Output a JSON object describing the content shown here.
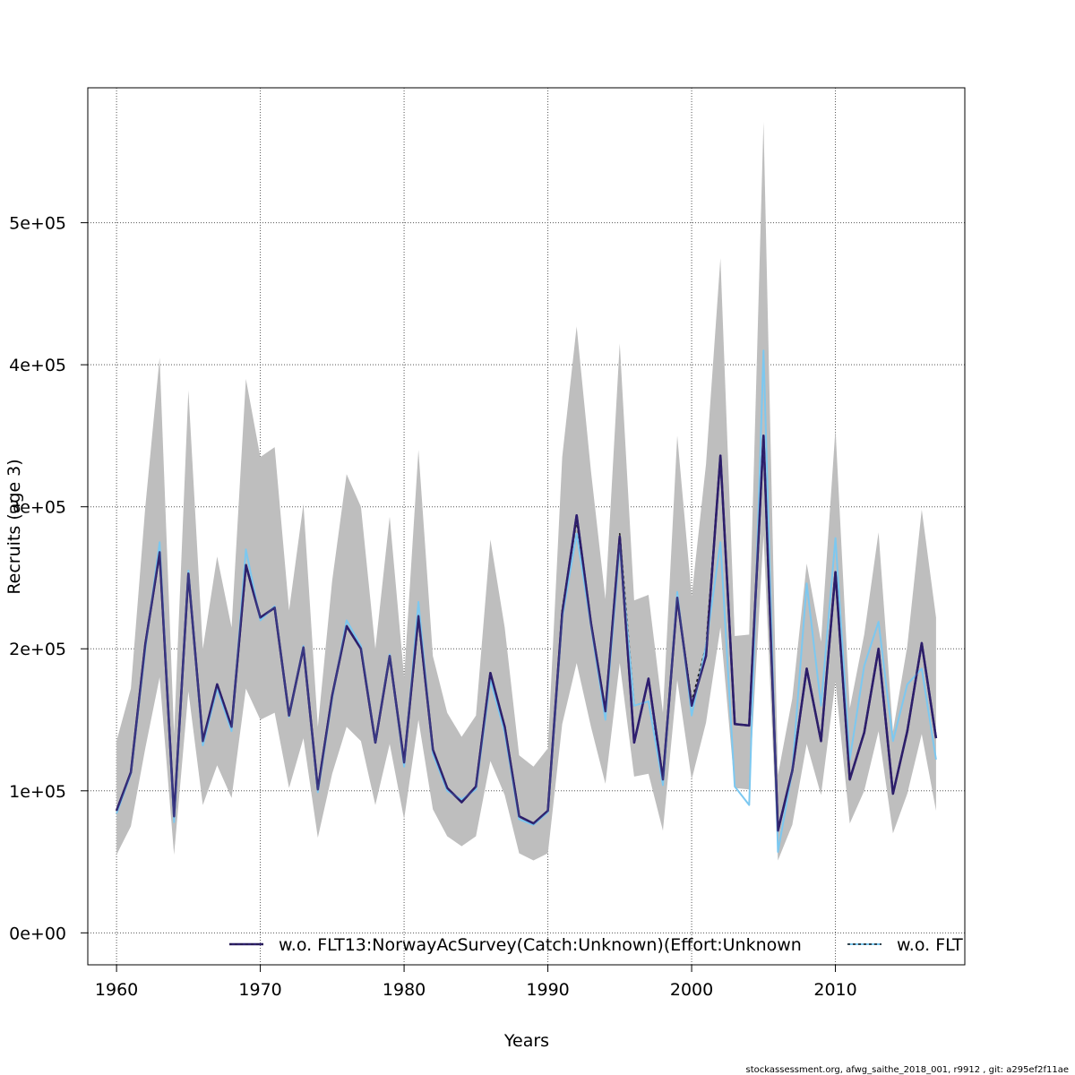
{
  "chart_data": {
    "type": "line",
    "xlabel": "Years",
    "ylabel": "Recruits (age 3)",
    "xlim": [
      1958,
      2019
    ],
    "ylim": [
      -22500,
      595000
    ],
    "x_ticks": [
      1960,
      1970,
      1980,
      1990,
      2000,
      2010
    ],
    "x_tick_labels": [
      "1960",
      "1970",
      "1980",
      "1990",
      "2000",
      "2010"
    ],
    "y_ticks": [
      0,
      100000,
      200000,
      300000,
      400000,
      500000
    ],
    "y_tick_labels": [
      "0e+00",
      "1e+05",
      "2e+05",
      "3e+05",
      "4e+05",
      "5e+05"
    ],
    "grid": true,
    "legend_position": "bottom",
    "years": [
      1960,
      1961,
      1962,
      1963,
      1964,
      1965,
      1966,
      1967,
      1968,
      1969,
      1970,
      1971,
      1972,
      1973,
      1974,
      1975,
      1976,
      1977,
      1978,
      1979,
      1980,
      1981,
      1982,
      1983,
      1984,
      1985,
      1986,
      1987,
      1988,
      1989,
      1990,
      1991,
      1992,
      1993,
      1994,
      1995,
      1996,
      1997,
      1998,
      1999,
      2000,
      2001,
      2002,
      2003,
      2004,
      2005,
      2006,
      2007,
      2008,
      2009,
      2010,
      2011,
      2012,
      2013,
      2014,
      2015,
      2016,
      2017
    ],
    "band": {
      "color": "#bebebe",
      "lower": [
        55000,
        75000,
        130000,
        180000,
        55000,
        170000,
        90000,
        118000,
        95000,
        172000,
        150000,
        155000,
        102000,
        137000,
        67000,
        112000,
        145000,
        135000,
        90000,
        133000,
        80000,
        150000,
        87000,
        68000,
        61000,
        68000,
        121000,
        97000,
        56000,
        51000,
        56000,
        147000,
        190000,
        145000,
        105000,
        190000,
        110000,
        112000,
        72000,
        178000,
        108000,
        148000,
        215000,
        102000,
        101000,
        280000,
        51000,
        76000,
        133000,
        97000,
        177000,
        77000,
        100000,
        142000,
        70000,
        98000,
        140000,
        86000
      ],
      "upper": [
        135000,
        172000,
        300000,
        405000,
        140000,
        382000,
        200000,
        265000,
        215000,
        390000,
        335000,
        342000,
        227000,
        302000,
        145000,
        248000,
        323000,
        300000,
        200000,
        293000,
        180000,
        340000,
        195000,
        155000,
        138000,
        153000,
        277000,
        215000,
        125000,
        117000,
        130000,
        335000,
        427000,
        325000,
        235000,
        415000,
        234000,
        238000,
        155000,
        350000,
        237000,
        330000,
        475000,
        209000,
        210000,
        571000,
        111000,
        165000,
        260000,
        205000,
        355000,
        158000,
        210000,
        282000,
        142000,
        202000,
        298000,
        222000
      ]
    },
    "series": [
      {
        "name": "w.o. FLT13:NorwayAcSurvey(Catch:Unknown)(Effort:Unknown",
        "color": "#2e1f6e",
        "width": 2.5,
        "dash": "",
        "values": [
          86000,
          113000,
          203000,
          268000,
          82000,
          253000,
          135000,
          175000,
          145000,
          259000,
          222000,
          229000,
          153000,
          201000,
          101000,
          167000,
          216000,
          200000,
          134000,
          195000,
          120000,
          223000,
          129000,
          102000,
          92000,
          103000,
          183000,
          145000,
          82000,
          77000,
          86000,
          225000,
          294000,
          218000,
          156000,
          279000,
          134000,
          179000,
          108000,
          236000,
          160000,
          195000,
          336000,
          147000,
          146000,
          350000,
          72000,
          114000,
          186000,
          135000,
          254000,
          108000,
          141000,
          200000,
          98000,
          142000,
          204000,
          137000
        ]
      },
      {
        "name": "w.o. FLT",
        "color": "#1a1a1a",
        "width": 1.6,
        "dash": "3,3",
        "values": [
          86000,
          113000,
          203000,
          268000,
          82000,
          253000,
          135000,
          175000,
          145000,
          259000,
          222000,
          229000,
          153000,
          201000,
          101000,
          167000,
          216000,
          200000,
          134000,
          195000,
          120000,
          223000,
          129000,
          102000,
          92000,
          103000,
          183000,
          145000,
          82000,
          77000,
          86000,
          228000,
          290000,
          218000,
          156000,
          281000,
          160000,
          163000,
          108000,
          236000,
          163000,
          202000,
          336000,
          147000,
          146000,
          350000,
          72000,
          114000,
          186000,
          135000,
          254000,
          108000,
          141000,
          200000,
          98000,
          142000,
          204000,
          137000
        ]
      },
      {
        "name": "",
        "color": "#7cc8f0",
        "width": 2,
        "dash": "",
        "values": [
          84000,
          112000,
          200000,
          275000,
          78000,
          255000,
          132000,
          172000,
          142000,
          270000,
          220000,
          230000,
          152000,
          202000,
          99000,
          165000,
          220000,
          202000,
          134000,
          196000,
          117000,
          233000,
          126000,
          100000,
          94000,
          101000,
          178000,
          141000,
          80000,
          76000,
          85000,
          222000,
          281000,
          216000,
          150000,
          273000,
          160000,
          163000,
          104000,
          240000,
          153000,
          202000,
          275000,
          103000,
          90000,
          410000,
          57000,
          114000,
          246000,
          160000,
          278000,
          122000,
          188000,
          219000,
          135000,
          175000,
          186000,
          122000
        ]
      }
    ],
    "legend": [
      {
        "label": "w.o. FLT13:NorwayAcSurvey(Catch:Unknown)(Effort:Unknown",
        "series": 0
      },
      {
        "label": "w.o. FLT",
        "series": 1
      }
    ]
  },
  "footer": "stockassessment.org, afwg_saithe_2018_001, r9912 , git: a295ef2f11ae"
}
